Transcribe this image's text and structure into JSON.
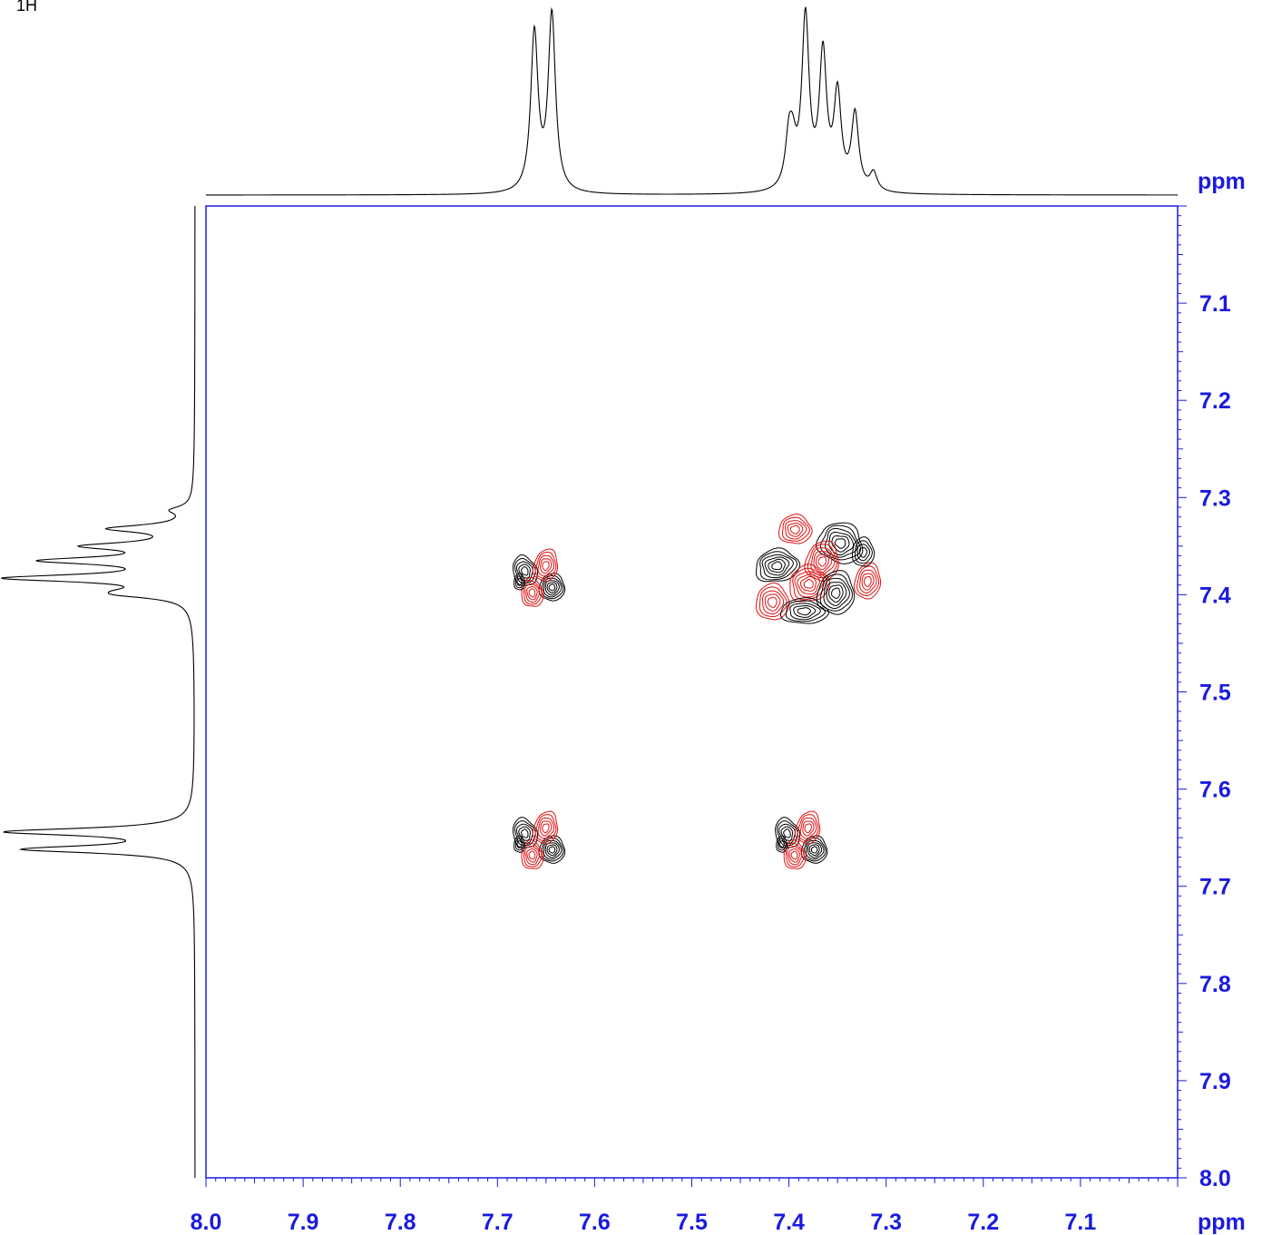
{
  "corner_label": "1H",
  "chart_data": {
    "type": "contour",
    "title": "",
    "xlabel": "ppm",
    "ylabel": "ppm",
    "xlim": [
      8.0,
      7.0
    ],
    "ylim": [
      7.0,
      8.0
    ],
    "x_ticks": [
      "8.0",
      "7.9",
      "7.8",
      "7.7",
      "7.6",
      "7.5",
      "7.4",
      "7.3",
      "7.2",
      "7.1"
    ],
    "y_ticks": [
      "7.1",
      "7.2",
      "7.3",
      "7.4",
      "7.5",
      "7.6",
      "7.7",
      "7.8",
      "7.9",
      "8.0"
    ],
    "colors": {
      "axis": "#1a1ae0",
      "positive": "#000000",
      "negative": "#e01010",
      "trace": "#000000"
    },
    "projection_peaks": [
      {
        "ppm": 7.662,
        "height": 0.88
      },
      {
        "ppm": 7.644,
        "height": 0.98
      },
      {
        "ppm": 7.4,
        "height": 0.26
      },
      {
        "ppm": 7.396,
        "height": 0.18
      },
      {
        "ppm": 7.383,
        "height": 0.95
      },
      {
        "ppm": 7.365,
        "height": 0.74
      },
      {
        "ppm": 7.35,
        "height": 0.52
      },
      {
        "ppm": 7.332,
        "height": 0.42
      },
      {
        "ppm": 7.313,
        "height": 0.1
      }
    ],
    "cross_peaks": [
      {
        "x": 7.655,
        "y": 7.385,
        "kind": "multiplet"
      },
      {
        "x": 7.375,
        "y": 7.375,
        "kind": "multiplet-large"
      },
      {
        "x": 7.655,
        "y": 7.655,
        "kind": "multiplet"
      },
      {
        "x": 7.385,
        "y": 7.655,
        "kind": "multiplet"
      }
    ]
  }
}
